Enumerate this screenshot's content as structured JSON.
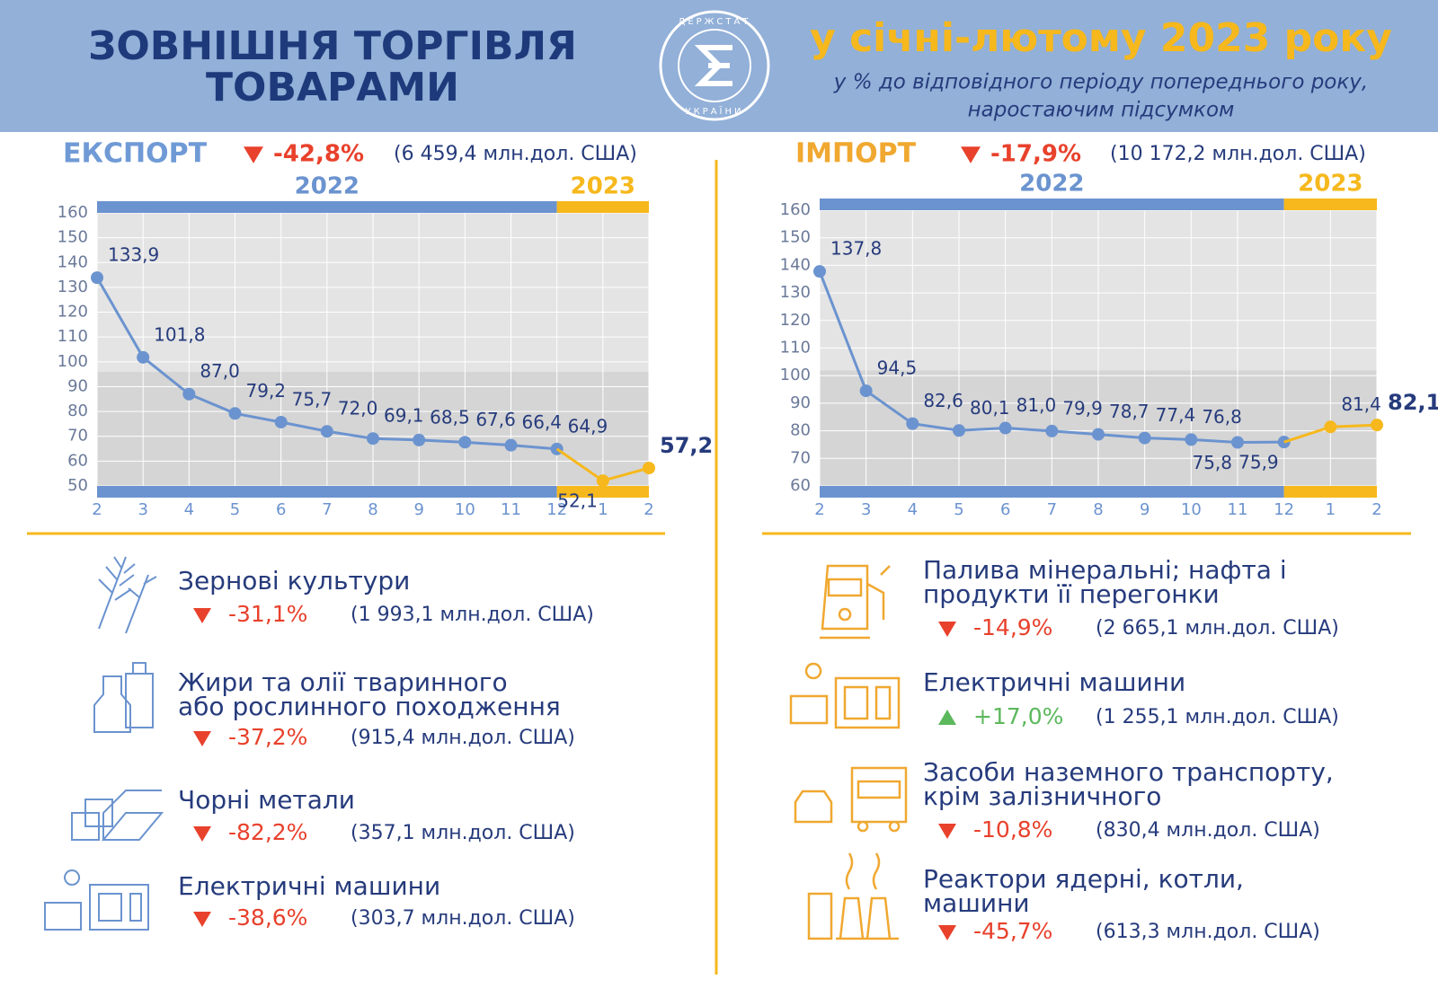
{
  "header": {
    "title_line1": "ЗОВНІШНЯ ТОРГІВЛЯ",
    "title_line2": "ТОВАРАМИ",
    "logo_top": "ДЕРЖСТАТ",
    "logo_bottom": "УКРАЇНИ",
    "period": "у січні-лютому 2023 року",
    "subtitle_line1": "у % до відповідного періоду попереднього року,",
    "subtitle_line2": "наростаючим підсумком"
  },
  "chart_data": [
    {
      "type": "line",
      "title": "ЕКСПОРТ",
      "change": "-42,8%",
      "total": "(6 459,4 млн.дол. США)",
      "categories": [
        "2",
        "3",
        "4",
        "5",
        "6",
        "7",
        "8",
        "9",
        "10",
        "11",
        "12",
        "1",
        "2"
      ],
      "series": [
        {
          "name": "2022",
          "color": "#6b93cf",
          "values": [
            133.9,
            101.8,
            87.0,
            79.2,
            75.7,
            72.0,
            69.1,
            68.5,
            67.6,
            66.4,
            64.9,
            null,
            null
          ],
          "value_labels": [
            "133,9",
            "101,8",
            "87,0",
            "79,2",
            "75,7",
            "72,0",
            "69,1",
            "68,5",
            "67,6",
            "66,4",
            "64,9",
            null,
            null
          ]
        },
        {
          "name": "2023",
          "color": "#f6b81c",
          "values": [
            null,
            null,
            null,
            null,
            null,
            null,
            null,
            null,
            null,
            null,
            null,
            52.1,
            57.2
          ],
          "value_labels": [
            null,
            null,
            null,
            null,
            null,
            null,
            null,
            null,
            null,
            null,
            null,
            "52,1",
            "57,2"
          ]
        }
      ],
      "ylim": [
        50,
        160
      ],
      "yticks": [
        50,
        60,
        70,
        80,
        90,
        100,
        110,
        120,
        130,
        140,
        150,
        160
      ],
      "grid": true
    },
    {
      "type": "line",
      "title": "ІМПОРТ",
      "change": "-17,9%",
      "total": "(10 172,2 млн.дол. США)",
      "categories": [
        "2",
        "3",
        "4",
        "5",
        "6",
        "7",
        "8",
        "9",
        "10",
        "11",
        "12",
        "1",
        "2"
      ],
      "series": [
        {
          "name": "2022",
          "color": "#6b93cf",
          "values": [
            137.8,
            94.5,
            82.6,
            80.1,
            81.0,
            79.9,
            78.7,
            77.4,
            76.8,
            75.8,
            75.9,
            null,
            null
          ],
          "value_labels": [
            "137,8",
            "94,5",
            "82,6",
            "80,1",
            "81,0",
            "79,9",
            "78,7",
            "77,4",
            "76,8",
            "75,8",
            "75,9",
            null,
            null
          ]
        },
        {
          "name": "2023",
          "color": "#f6b81c",
          "values": [
            null,
            null,
            null,
            null,
            null,
            null,
            null,
            null,
            null,
            null,
            null,
            81.4,
            82.1
          ],
          "value_labels": [
            null,
            null,
            null,
            null,
            null,
            null,
            null,
            null,
            null,
            null,
            null,
            "81,4",
            "82,1"
          ]
        }
      ],
      "ylim": [
        60,
        160
      ],
      "yticks": [
        60,
        70,
        80,
        90,
        100,
        110,
        120,
        130,
        140,
        150,
        160
      ],
      "grid": true
    }
  ],
  "export_items": [
    {
      "name": [
        "Зернові культури"
      ],
      "change": "-31,1%",
      "total": "(1 993,1 млн.дол. США)"
    },
    {
      "name": [
        "Жири та олії тваринного",
        "або рослинного походження"
      ],
      "change": "-37,2%",
      "total": "(915,4 млн.дол. США)"
    },
    {
      "name": [
        "Чорні метали"
      ],
      "change": "-82,2%",
      "total": "(357,1 млн.дол. США)"
    },
    {
      "name": [
        "Електричні машини"
      ],
      "change": "-38,6%",
      "total": "(303,7 млн.дол. США)"
    }
  ],
  "import_items": [
    {
      "name": [
        "Палива мінеральні; нафта і",
        "продукти її перегонки"
      ],
      "change": "-14,9%",
      "total": "(2 665,1 млн.дол. США)"
    },
    {
      "name": [
        "Електричні машини"
      ],
      "change": "+17,0%",
      "total": "(1 255,1 млн.дол. США)"
    },
    {
      "name": [
        "Засоби наземного транспорту,",
        "крім залізничного"
      ],
      "change": "-10,8%",
      "total": "(830,4  млн.дол. США)"
    },
    {
      "name": [
        "Реактори ядерні, котли,",
        "машини"
      ],
      "change": "-45,7%",
      "total": "(613,3 млн.дол. США)"
    }
  ]
}
